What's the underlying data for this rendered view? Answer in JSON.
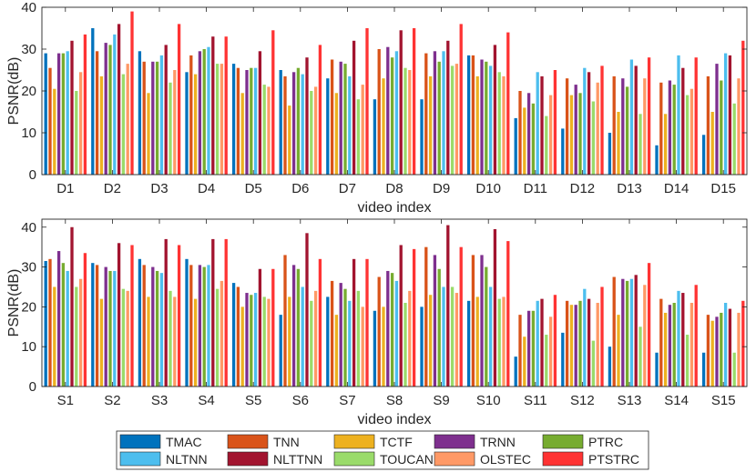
{
  "colors": {
    "TMAC": "#0072BD",
    "TNN": "#D95319",
    "TCTF": "#EDB120",
    "TRNN": "#7E2F8E",
    "PTRC": "#77AC30",
    "NLTNN": "#4DBEEE",
    "NLTTNN": "#A2142F",
    "TOUCAN": "#9ADB6A",
    "OLSTEC": "#FF9966",
    "PTSTRC": "#FF3333"
  },
  "legend": {
    "rows": [
      [
        "TMAC",
        "TNN",
        "TCTF",
        "TRNN",
        "PTRC"
      ],
      [
        "NLTNN",
        "NLTTNN",
        "TOUCAN",
        "OLSTEC",
        "PTSTRC"
      ]
    ]
  },
  "chart_data": [
    {
      "type": "bar",
      "title": "",
      "xlabel": "video index",
      "ylabel": "PSNR(dB)",
      "ylim": [
        0,
        40
      ],
      "yticks": [
        0,
        10,
        20,
        30,
        40
      ],
      "grid": false,
      "categories": [
        "D1",
        "D2",
        "D3",
        "D4",
        "D5",
        "D6",
        "D7",
        "D8",
        "D9",
        "D10",
        "D11",
        "D12",
        "D13",
        "D14",
        "D15"
      ],
      "series": [
        {
          "name": "TMAC",
          "values": [
            29,
            35,
            29.5,
            24.5,
            26.5,
            25,
            23,
            18,
            18,
            28.5,
            13.5,
            11,
            10,
            7,
            9.5
          ]
        },
        {
          "name": "TNN",
          "values": [
            25.5,
            29.5,
            27,
            28.5,
            25.5,
            23.5,
            27.5,
            30,
            29,
            28.5,
            20,
            23,
            23.5,
            22,
            23.5
          ]
        },
        {
          "name": "TCTF",
          "values": [
            20.5,
            23.5,
            19.5,
            24,
            19.5,
            16.5,
            19.5,
            23,
            23.5,
            23.5,
            16,
            19,
            15,
            14.5,
            15
          ]
        },
        {
          "name": "TRNN",
          "values": [
            29,
            31.5,
            27,
            29.5,
            25,
            24.5,
            27,
            30.5,
            29.5,
            27.5,
            19.5,
            21.5,
            23,
            22.5,
            26.5
          ]
        },
        {
          "name": "PTRC",
          "values": [
            29,
            31,
            27,
            30,
            25.5,
            25.5,
            26.5,
            28,
            27,
            27,
            17,
            19.5,
            21,
            21.5,
            22.5
          ]
        },
        {
          "name": "NLTNN",
          "values": [
            29.5,
            33.5,
            28.5,
            30.5,
            25.5,
            24,
            23.5,
            29.5,
            29.5,
            26,
            24.5,
            25.5,
            27.5,
            28.5,
            29
          ]
        },
        {
          "name": "NLTTNN",
          "values": [
            32,
            36,
            31,
            33,
            29.5,
            28,
            32,
            34.5,
            32,
            31,
            23.5,
            24.5,
            26,
            25.5,
            28.5
          ]
        },
        {
          "name": "TOUCAN",
          "values": [
            20,
            24,
            22,
            26.5,
            21.5,
            20,
            18,
            25.5,
            26,
            24.5,
            14,
            17.5,
            14.5,
            19,
            17
          ]
        },
        {
          "name": "OLSTEC",
          "values": [
            24.5,
            26.5,
            25,
            26.5,
            21,
            21,
            21.5,
            25,
            26.5,
            23.5,
            19,
            22,
            23,
            20.5,
            23
          ]
        },
        {
          "name": "PTSTRC",
          "values": [
            33.5,
            39,
            36,
            33,
            34.5,
            31,
            35,
            35,
            36,
            34,
            25,
            26,
            28,
            28,
            32
          ]
        }
      ]
    },
    {
      "type": "bar",
      "title": "",
      "xlabel": "video index",
      "ylabel": "PSNR(dB)",
      "ylim": [
        0,
        42
      ],
      "yticks": [
        0,
        10,
        20,
        30,
        40
      ],
      "grid": false,
      "categories": [
        "S1",
        "S2",
        "S3",
        "S4",
        "S5",
        "S6",
        "S7",
        "S8",
        "S9",
        "S10",
        "S11",
        "S12",
        "S13",
        "S14",
        "S15"
      ],
      "series": [
        {
          "name": "TMAC",
          "values": [
            31.5,
            31,
            32,
            32,
            26,
            18,
            22.5,
            19,
            20,
            21.5,
            7.5,
            13.5,
            10,
            8.5,
            8.5
          ]
        },
        {
          "name": "TNN",
          "values": [
            32,
            30.5,
            30.5,
            30.5,
            25,
            33,
            26.5,
            27.5,
            35,
            33,
            18,
            21.5,
            27.5,
            22,
            18
          ]
        },
        {
          "name": "TCTF",
          "values": [
            25,
            22,
            22.5,
            22,
            20,
            22.5,
            18,
            20,
            23,
            22.5,
            12.5,
            20.5,
            18,
            18.5,
            16.5
          ]
        },
        {
          "name": "TRNN",
          "values": [
            34,
            30,
            30,
            30.5,
            23.5,
            30.5,
            26,
            29,
            33,
            33,
            19,
            20.5,
            27,
            20.5,
            17.5
          ]
        },
        {
          "name": "PTRC",
          "values": [
            31,
            29,
            29,
            30,
            23,
            29.5,
            24.5,
            28.5,
            29.5,
            30,
            19,
            21.5,
            26.5,
            21,
            18.5
          ]
        },
        {
          "name": "NLTNN",
          "values": [
            29,
            29,
            28.5,
            30.5,
            23.5,
            25,
            21.5,
            26.5,
            25,
            25,
            21.5,
            24.5,
            27,
            24,
            21
          ]
        },
        {
          "name": "NLTTNN",
          "values": [
            40,
            36,
            37,
            37,
            29.5,
            38.5,
            32,
            35.5,
            40.5,
            39.5,
            22,
            22,
            28,
            23.5,
            19.5
          ]
        },
        {
          "name": "TOUCAN",
          "values": [
            25,
            24.5,
            24,
            24.5,
            22.5,
            21.5,
            24,
            21,
            25,
            22,
            13,
            11.5,
            15,
            13,
            8.5
          ]
        },
        {
          "name": "OLSTEC",
          "values": [
            27,
            24,
            22.5,
            26.5,
            22,
            24,
            20,
            24,
            23.5,
            22.5,
            17.5,
            21,
            25.5,
            21,
            18.5
          ]
        },
        {
          "name": "PTSTRC",
          "values": [
            33.5,
            35.5,
            35.5,
            37,
            29.5,
            32,
            32,
            34.5,
            35,
            36.5,
            23,
            25,
            31,
            25.5,
            21.5
          ]
        }
      ]
    }
  ]
}
